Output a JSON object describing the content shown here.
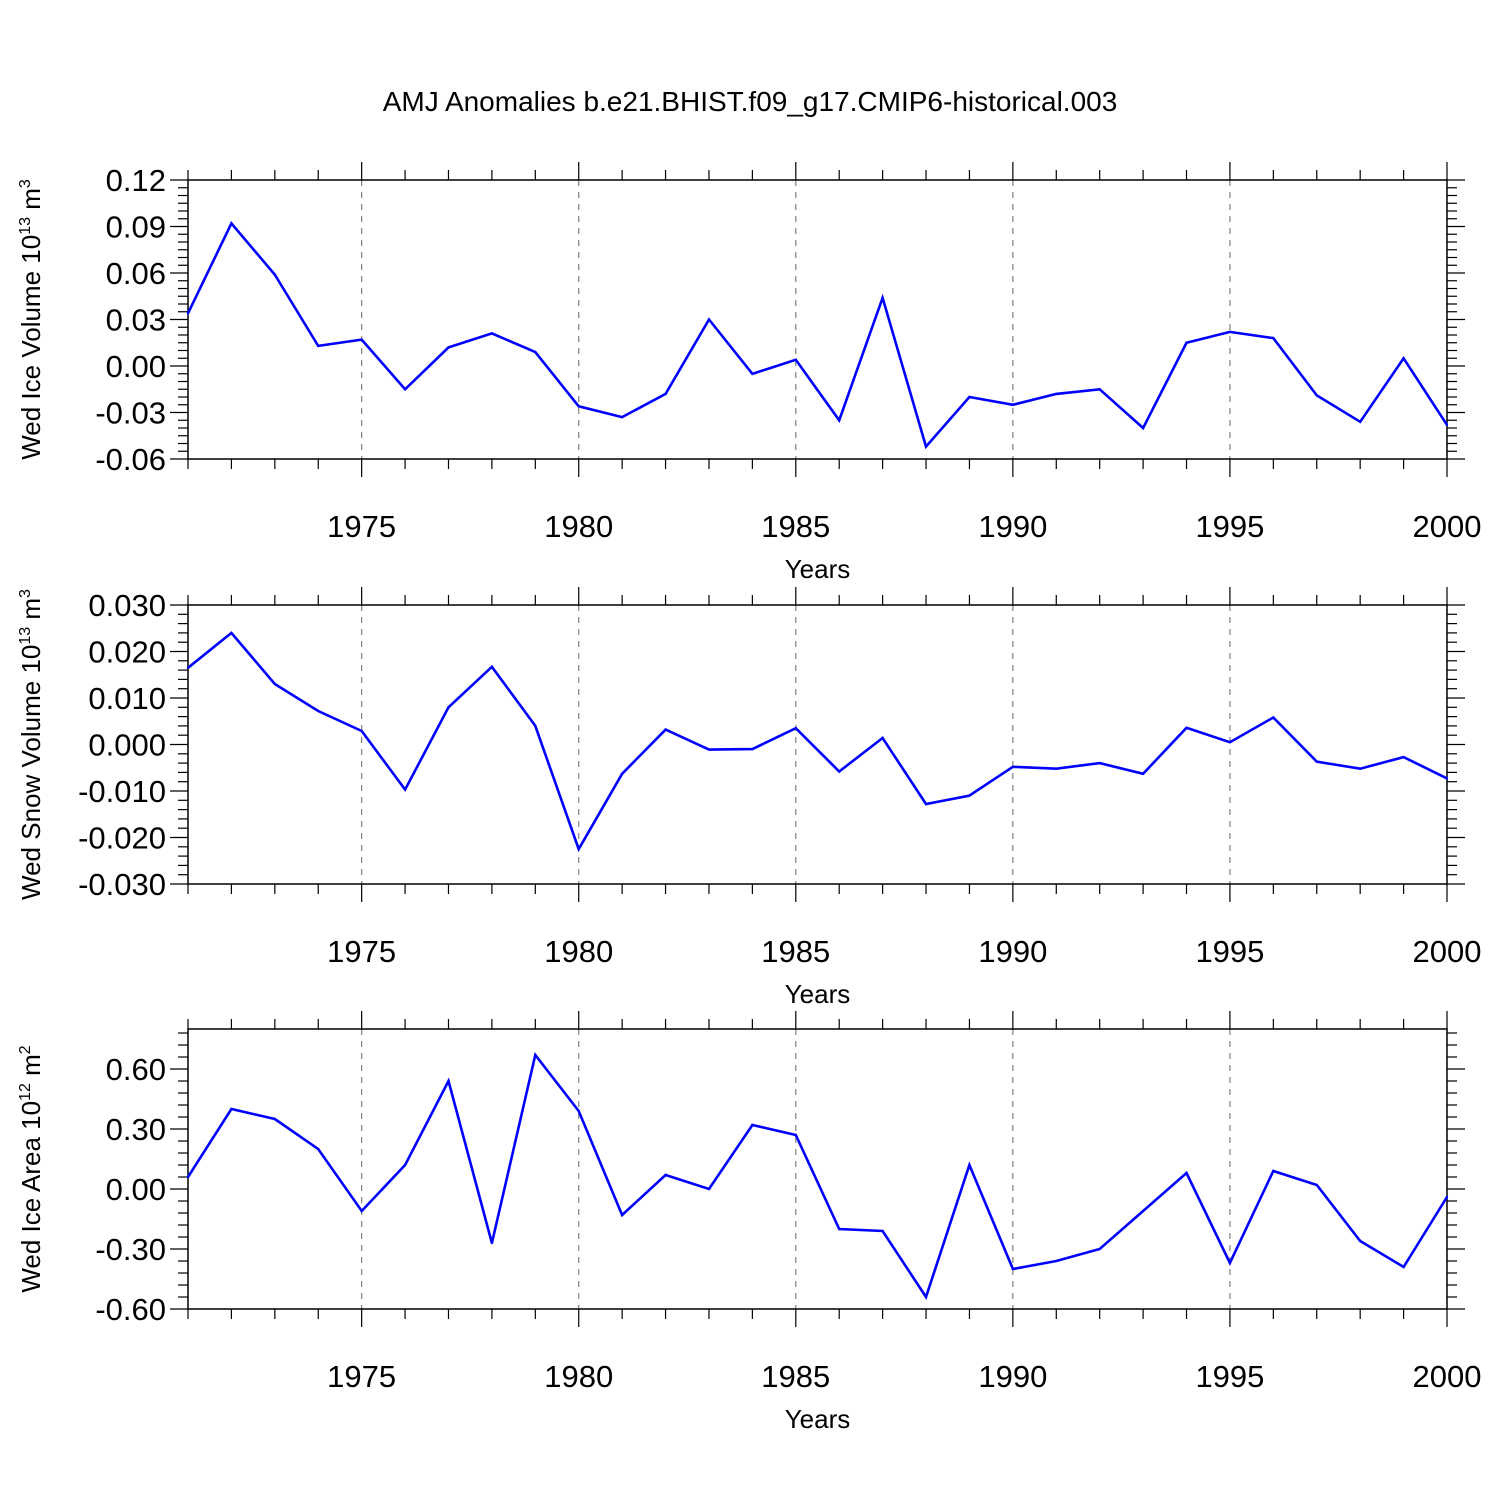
{
  "title": "AMJ Anomalies b.e21.BHIST.f09_g17.CMIP6-historical.003",
  "colors": {
    "line": "#0000ff",
    "axis": "#000000",
    "grid": "#808080"
  },
  "chart_data": [
    {
      "type": "line",
      "ylabel_main": "Wed Ice Volume 10",
      "ylabel_exp": "13",
      "ylabel_unit": "m",
      "ylabel_unit_exp": "3",
      "xlabel": "Years",
      "xlim": [
        1971,
        2000
      ],
      "ylim": [
        -0.06,
        0.12
      ],
      "yticks": [
        -0.06,
        -0.03,
        0.0,
        0.03,
        0.06,
        0.09,
        0.12
      ],
      "ytick_labels": [
        "-0.06",
        "-0.03",
        "0.00",
        "0.03",
        "0.06",
        "0.09",
        "0.12"
      ],
      "xticks": [
        1975,
        1980,
        1985,
        1990,
        1995,
        2000
      ],
      "xtick_labels": [
        "1975",
        "1980",
        "1985",
        "1990",
        "1995",
        "2000"
      ],
      "grid": "vertical dashed at major x ticks",
      "x": [
        1971,
        1972,
        1973,
        1974,
        1975,
        1976,
        1977,
        1978,
        1979,
        1980,
        1981,
        1982,
        1983,
        1984,
        1985,
        1986,
        1987,
        1988,
        1989,
        1990,
        1991,
        1992,
        1993,
        1994,
        1995,
        1996,
        1997,
        1998,
        1999,
        2000
      ],
      "values": [
        0.034,
        0.092,
        0.059,
        0.013,
        0.017,
        -0.015,
        0.012,
        0.021,
        0.009,
        -0.026,
        -0.033,
        -0.018,
        0.03,
        -0.005,
        0.004,
        -0.035,
        0.044,
        -0.052,
        -0.02,
        -0.025,
        -0.018,
        -0.015,
        -0.04,
        0.015,
        0.022,
        0.018,
        -0.019,
        -0.036,
        0.005,
        -0.038
      ]
    },
    {
      "type": "line",
      "ylabel_main": "Wed Snow Volume 10",
      "ylabel_exp": "13",
      "ylabel_unit": "m",
      "ylabel_unit_exp": "3",
      "xlabel": "Years",
      "xlim": [
        1971,
        2000
      ],
      "ylim": [
        -0.03,
        0.03
      ],
      "yticks": [
        -0.03,
        -0.02,
        -0.01,
        0.0,
        0.01,
        0.02,
        0.03
      ],
      "ytick_labels": [
        "-0.030",
        "-0.020",
        "-0.010",
        "0.000",
        "0.010",
        "0.020",
        "0.030"
      ],
      "xticks": [
        1975,
        1980,
        1985,
        1990,
        1995,
        2000
      ],
      "xtick_labels": [
        "1975",
        "1980",
        "1985",
        "1990",
        "1995",
        "2000"
      ],
      "grid": "vertical dashed at major x ticks",
      "x": [
        1971,
        1972,
        1973,
        1974,
        1975,
        1976,
        1977,
        1978,
        1979,
        1980,
        1981,
        1982,
        1983,
        1984,
        1985,
        1986,
        1987,
        1988,
        1989,
        1990,
        1991,
        1992,
        1993,
        1994,
        1995,
        1996,
        1997,
        1998,
        1999,
        2000
      ],
      "values": [
        0.0165,
        0.024,
        0.013,
        0.0072,
        0.0029,
        -0.0097,
        0.008,
        0.0167,
        0.004,
        -0.0225,
        -0.0063,
        0.0032,
        -0.0011,
        -0.001,
        0.0035,
        -0.0058,
        0.0014,
        -0.0128,
        -0.011,
        -0.0048,
        -0.0052,
        -0.004,
        -0.0063,
        0.0036,
        0.0005,
        0.0058,
        -0.0037,
        -0.0052,
        -0.0027,
        -0.0073
      ]
    },
    {
      "type": "line",
      "ylabel_main": "Wed Ice Area 10",
      "ylabel_exp": "12",
      "ylabel_unit": "m",
      "ylabel_unit_exp": "2",
      "xlabel": "Years",
      "xlim": [
        1971,
        2000
      ],
      "ylim": [
        -0.6,
        0.8
      ],
      "yticks": [
        -0.6,
        -0.3,
        0.0,
        0.3,
        0.6
      ],
      "ytick_labels": [
        "-0.60",
        "-0.30",
        "0.00",
        "0.30",
        "0.60"
      ],
      "xticks": [
        1975,
        1980,
        1985,
        1990,
        1995,
        2000
      ],
      "xtick_labels": [
        "1975",
        "1980",
        "1985",
        "1990",
        "1995",
        "2000"
      ],
      "grid": "vertical dashed at major x ticks",
      "x": [
        1971,
        1972,
        1973,
        1974,
        1975,
        1976,
        1977,
        1978,
        1979,
        1980,
        1981,
        1982,
        1983,
        1984,
        1985,
        1986,
        1987,
        1988,
        1989,
        1990,
        1991,
        1992,
        1993,
        1994,
        1995,
        1996,
        1997,
        1998,
        1999,
        2000
      ],
      "values": [
        0.06,
        0.4,
        0.35,
        0.2,
        -0.11,
        0.12,
        0.54,
        -0.27,
        0.67,
        0.39,
        -0.13,
        0.07,
        0.0,
        0.32,
        0.27,
        -0.2,
        -0.21,
        -0.54,
        0.12,
        -0.4,
        -0.36,
        -0.3,
        -0.11,
        0.08,
        -0.37,
        0.09,
        0.02,
        -0.26,
        -0.39,
        -0.04
      ]
    }
  ]
}
